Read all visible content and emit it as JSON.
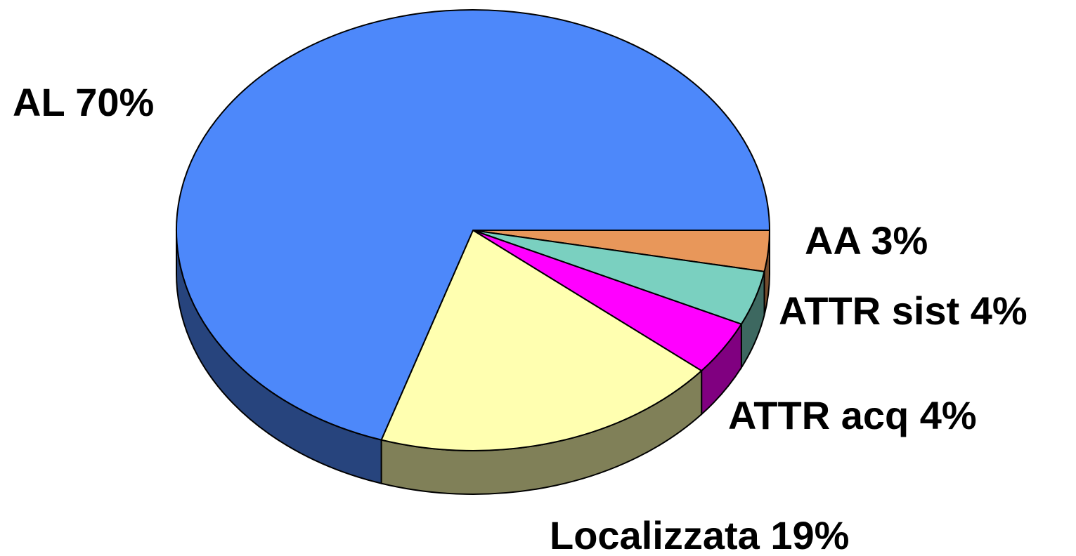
{
  "chart_data": {
    "type": "pie3d",
    "values": [
      3,
      4,
      4,
      19,
      70
    ],
    "value_labels": [
      "AA 3%",
      "ATTR sist 4%",
      "ATTR acq 4%",
      "Localizzata 19%",
      "AL 70%"
    ],
    "colors": [
      "#e8975a",
      "#7ad0c0",
      "#ff00ff",
      "#ffffb0",
      "#4d88fa"
    ]
  }
}
